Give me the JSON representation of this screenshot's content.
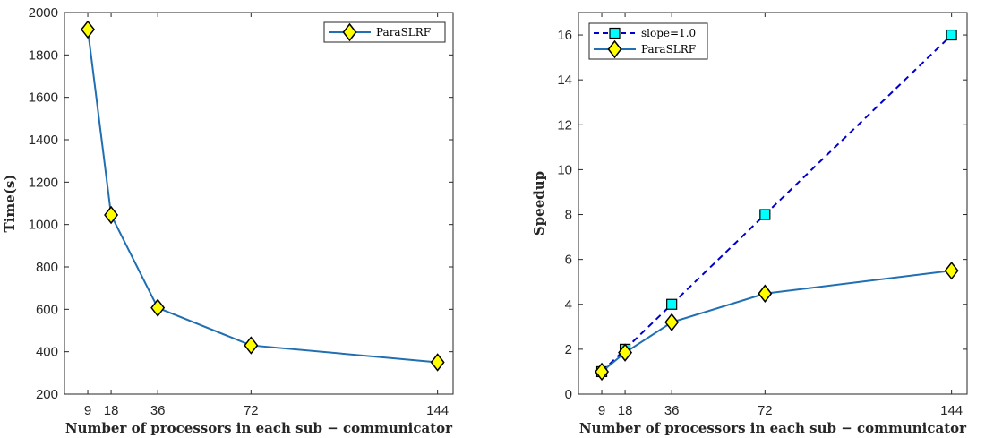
{
  "chart_data": [
    {
      "type": "line",
      "title": "",
      "xlabel": "Number of processors in each sub − communicator",
      "ylabel": "Time(s)",
      "x": [
        9,
        18,
        36,
        72,
        144
      ],
      "xlim": [
        0,
        150
      ],
      "ylim": [
        200,
        2000
      ],
      "xticks": [
        9,
        18,
        36,
        72,
        144
      ],
      "yticks": [
        200,
        400,
        600,
        800,
        1000,
        1200,
        1400,
        1600,
        1800,
        2000
      ],
      "legend_position": "top-right",
      "series": [
        {
          "name": "ParaSLRF",
          "values": [
            1920,
            1045,
            607,
            430,
            350
          ],
          "color": "#1f6fb2",
          "marker": "diamond",
          "marker_color": "#ffff00",
          "dash": "solid"
        }
      ]
    },
    {
      "type": "line",
      "title": "",
      "xlabel": "Number of processors in each sub − communicator",
      "ylabel": "Speedup",
      "x": [
        9,
        18,
        36,
        72,
        144
      ],
      "xlim": [
        0,
        150
      ],
      "ylim": [
        0,
        17
      ],
      "xticks": [
        9,
        18,
        36,
        72,
        144
      ],
      "yticks": [
        0,
        2,
        4,
        6,
        8,
        10,
        12,
        14,
        16
      ],
      "legend_position": "top-left",
      "series": [
        {
          "name": "slope=1.0",
          "values": [
            1,
            2,
            4,
            8,
            16
          ],
          "color": "#0000cc",
          "marker": "square",
          "marker_color": "#00ffff",
          "dash": "dashed"
        },
        {
          "name": "ParaSLRF",
          "values": [
            1,
            1.85,
            3.2,
            4.48,
            5.5
          ],
          "color": "#1f6fb2",
          "marker": "diamond",
          "marker_color": "#ffff00",
          "dash": "solid"
        }
      ]
    }
  ]
}
